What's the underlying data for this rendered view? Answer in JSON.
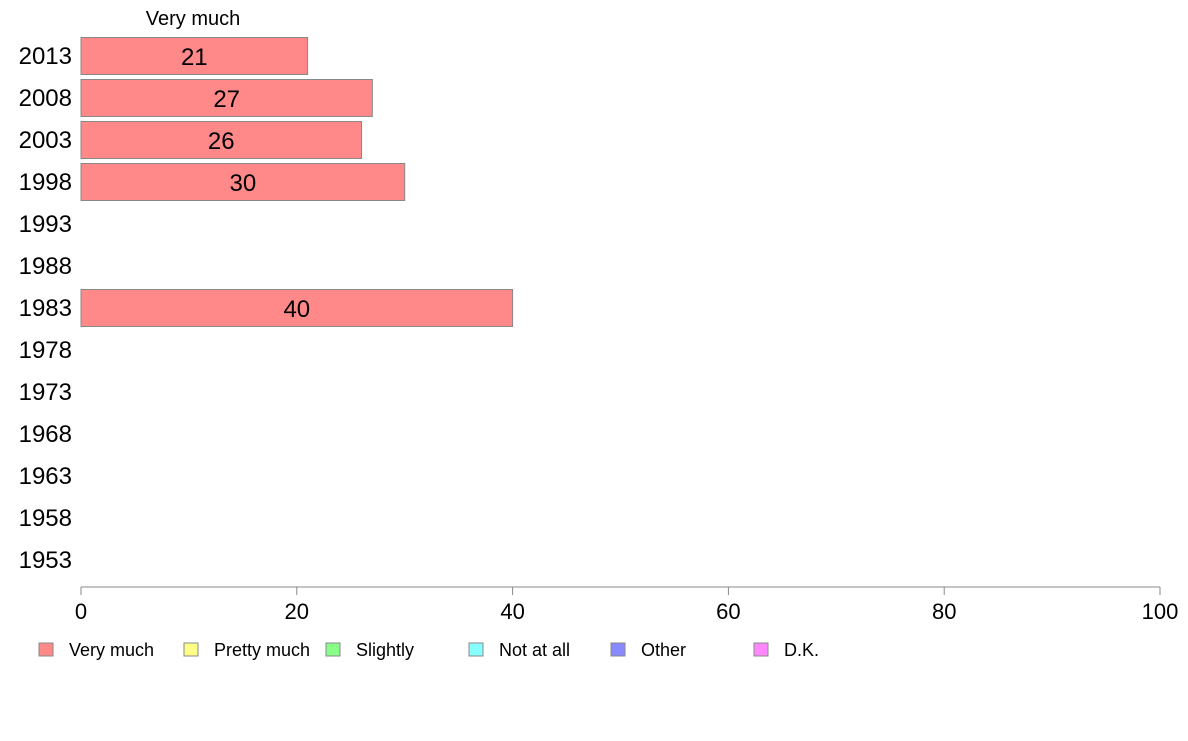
{
  "chart_data": {
    "type": "bar",
    "orientation": "horizontal",
    "stacked": true,
    "categories": [
      "2013",
      "2008",
      "2003",
      "1998",
      "1993",
      "1988",
      "1983",
      "1978",
      "1973",
      "1968",
      "1963",
      "1958",
      "1953"
    ],
    "series": [
      {
        "name": "Very much",
        "color": "#ff8888",
        "values": [
          21,
          27,
          26,
          30,
          null,
          null,
          40,
          null,
          null,
          null,
          null,
          null,
          null
        ]
      },
      {
        "name": "Pretty much",
        "color": "#ffff88",
        "values": [
          null,
          null,
          null,
          null,
          null,
          null,
          null,
          null,
          null,
          null,
          null,
          null,
          null
        ]
      },
      {
        "name": "Slightly",
        "color": "#88ff88",
        "values": [
          null,
          null,
          null,
          null,
          null,
          null,
          null,
          null,
          null,
          null,
          null,
          null,
          null
        ]
      },
      {
        "name": "Not at all",
        "color": "#88ffff",
        "values": [
          null,
          null,
          null,
          null,
          null,
          null,
          null,
          null,
          null,
          null,
          null,
          null,
          null
        ]
      },
      {
        "name": "Other",
        "color": "#8888ff",
        "values": [
          null,
          null,
          null,
          null,
          null,
          null,
          null,
          null,
          null,
          null,
          null,
          null,
          null
        ]
      },
      {
        "name": "D.K.",
        "color": "#ff88ff",
        "values": [
          null,
          null,
          null,
          null,
          null,
          null,
          null,
          null,
          null,
          null,
          null,
          null,
          null
        ]
      }
    ],
    "series_header": "Very much",
    "xlim": [
      0,
      100
    ],
    "xticks": [
      0,
      20,
      40,
      60,
      80,
      100
    ],
    "grid": false,
    "legend_position": "bottom"
  }
}
